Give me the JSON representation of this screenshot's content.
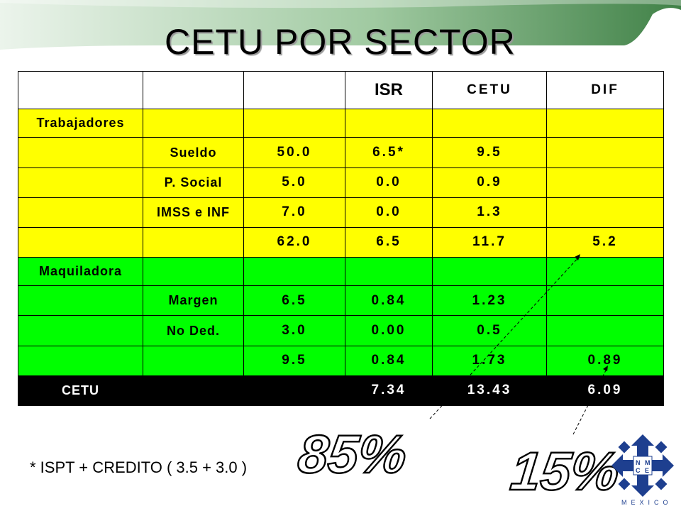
{
  "slide": {
    "title": "CETU POR SECTOR",
    "footnote": "* ISPT + CREDITO ( 3.5 + 3.0 )",
    "callout_left": "85%",
    "callout_right": "15%"
  },
  "table": {
    "header": [
      "",
      "",
      "",
      "ISR",
      "CETU",
      "DIF"
    ],
    "rows": [
      {
        "style": "yellow",
        "cells": [
          "Trabajadores",
          "",
          "",
          "",
          "",
          ""
        ]
      },
      {
        "style": "yellow",
        "cells": [
          "",
          "Sueldo",
          "50.0",
          "6.5*",
          "9.5",
          ""
        ]
      },
      {
        "style": "yellow",
        "cells": [
          "",
          "P. Social",
          "5.0",
          "0.0",
          "0.9",
          ""
        ]
      },
      {
        "style": "yellow",
        "cells": [
          "",
          "IMSS e INF",
          "7.0",
          "0.0",
          "1.3",
          ""
        ]
      },
      {
        "style": "yellow",
        "cells": [
          "",
          "",
          "62.0",
          "6.5",
          "11.7",
          "5.2"
        ]
      },
      {
        "style": "green",
        "cells": [
          "Maquiladora",
          "",
          "",
          "",
          "",
          ""
        ]
      },
      {
        "style": "green",
        "cells": [
          "",
          "Margen",
          "6.5",
          "0.84",
          "1.23",
          ""
        ]
      },
      {
        "style": "green",
        "cells": [
          "",
          "No Ded.",
          "3.0",
          "0.00",
          "0.5",
          ""
        ]
      },
      {
        "style": "green",
        "cells": [
          "",
          "",
          "9.5",
          "0.84",
          "1.73",
          "0.89"
        ]
      },
      {
        "style": "total",
        "cells": [
          "CETU",
          "",
          "",
          "7.34",
          "13.43",
          "6.09"
        ]
      }
    ]
  },
  "logo": {
    "letters": [
      "N",
      "M",
      "C",
      "E"
    ],
    "caption": "MEXICO"
  },
  "colors": {
    "yellow_rows": "#ffff00",
    "green_rows": "#00ff00",
    "total_row": "#000000",
    "topbar_green": "#2f7a34",
    "logo_blue": "#1e3f8f"
  }
}
